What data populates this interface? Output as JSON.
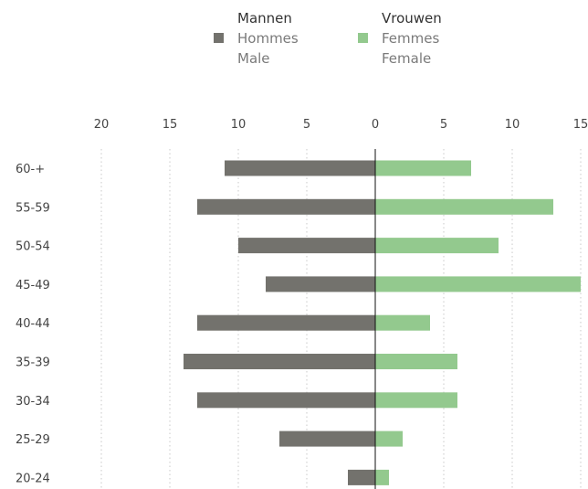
{
  "legend": {
    "male": {
      "title": "Mannen",
      "line2": "Hommes",
      "line3": "Male"
    },
    "female": {
      "title": "Vrouwen",
      "line2": "Femmes",
      "line3": "Female"
    }
  },
  "chart_data": {
    "type": "bar",
    "orientation": "horizontal-diverging",
    "categories": [
      "60-+",
      "55-59",
      "50-54",
      "45-49",
      "40-44",
      "35-39",
      "30-34",
      "25-29",
      "20-24"
    ],
    "series": [
      {
        "key": "male",
        "color": "#73726d",
        "values": [
          11,
          13,
          10,
          8,
          13,
          14,
          13,
          7,
          2
        ]
      },
      {
        "key": "female",
        "color": "#93c98e",
        "values": [
          7,
          13,
          9,
          15,
          4,
          6,
          6,
          2,
          1
        ]
      }
    ],
    "x_ticks_left": [
      20,
      15,
      10,
      5,
      0
    ],
    "x_ticks_right": [
      5,
      10,
      15
    ],
    "xlim_left": [
      0,
      20
    ],
    "xlim_right": [
      0,
      15
    ],
    "grid": true,
    "legend_position": "top"
  }
}
